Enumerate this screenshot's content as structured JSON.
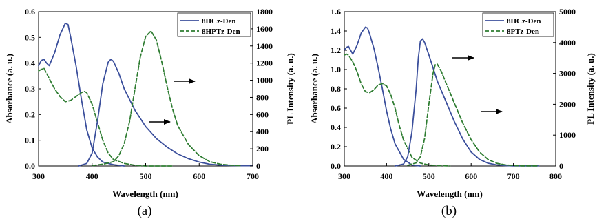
{
  "colors": {
    "solid": "#3b4f9c",
    "dashed": "#2f7d32",
    "axis": "#000000"
  },
  "chart_data": [
    {
      "type": "line",
      "caption": "(a)",
      "xlabel": "Wavelength (nm)",
      "ylabel": "Absorbance (a. u.)",
      "y2label": "PL Intensity (a. u.)",
      "xlim": [
        300,
        700
      ],
      "ylim": [
        0,
        0.6
      ],
      "y2lim": [
        0,
        1800
      ],
      "xticks": [
        300,
        400,
        500,
        600,
        700
      ],
      "yticks": [
        0.0,
        0.1,
        0.2,
        0.3,
        0.4,
        0.5,
        0.6
      ],
      "ytick_labels": [
        "0.0",
        "0.1",
        "0.2",
        "0.3",
        "0.4",
        "0.5",
        "0.6"
      ],
      "y2ticks": [
        0,
        200,
        400,
        600,
        800,
        1000,
        1200,
        1400,
        1600,
        1800
      ],
      "legend_position": "top-right",
      "series": [
        {
          "name": "8HCz-Den",
          "style": "solid",
          "axis": "left",
          "kind": "absorbance",
          "x": [
            300,
            305,
            310,
            315,
            320,
            330,
            340,
            350,
            355,
            360,
            370,
            380,
            390,
            400,
            410,
            420,
            440,
            460
          ],
          "y": [
            0.39,
            0.41,
            0.415,
            0.4,
            0.39,
            0.44,
            0.51,
            0.555,
            0.55,
            0.5,
            0.39,
            0.26,
            0.14,
            0.07,
            0.035,
            0.015,
            0.005,
            0.0
          ]
        },
        {
          "name": "8HPTz-Den",
          "style": "dashed",
          "axis": "left",
          "kind": "absorbance",
          "x": [
            300,
            305,
            310,
            320,
            330,
            340,
            350,
            360,
            370,
            380,
            385,
            390,
            400,
            410,
            420,
            430,
            440,
            460,
            480,
            500,
            550
          ],
          "y": [
            0.37,
            0.375,
            0.38,
            0.34,
            0.3,
            0.27,
            0.25,
            0.255,
            0.27,
            0.285,
            0.29,
            0.285,
            0.24,
            0.17,
            0.1,
            0.05,
            0.025,
            0.01,
            0.003,
            0.0,
            0.0
          ]
        },
        {
          "name": "8HCz-Den",
          "style": "solid",
          "axis": "right",
          "kind": "PL",
          "x": [
            375,
            390,
            400,
            410,
            420,
            430,
            435,
            440,
            450,
            460,
            480,
            500,
            520,
            540,
            560,
            580,
            600,
            620,
            640,
            660,
            680,
            700
          ],
          "y": [
            0,
            30,
            150,
            520,
            960,
            1210,
            1245,
            1220,
            1080,
            900,
            650,
            460,
            320,
            220,
            140,
            85,
            45,
            20,
            10,
            5,
            3,
            3
          ]
        },
        {
          "name": "8HPTz-Den",
          "style": "dashed",
          "axis": "right",
          "kind": "PL",
          "x": [
            400,
            420,
            440,
            450,
            460,
            470,
            480,
            490,
            500,
            510,
            520,
            530,
            540,
            550,
            560,
            580,
            600,
            620,
            640,
            660,
            680
          ],
          "y": [
            5,
            20,
            50,
            120,
            260,
            520,
            900,
            1270,
            1510,
            1575,
            1470,
            1220,
            930,
            670,
            470,
            250,
            120,
            50,
            20,
            8,
            3
          ]
        }
      ],
      "annotations": [
        {
          "type": "arrow",
          "direction": "right",
          "text": ""
        },
        {
          "type": "arrow",
          "direction": "right",
          "text": ""
        }
      ]
    },
    {
      "type": "line",
      "caption": "(b)",
      "xlabel": "Wavelength (nm)",
      "ylabel": "Absorbance (a. u.)",
      "y2label": "PL Intensity (a. u.)",
      "xlim": [
        300,
        800
      ],
      "ylim": [
        0,
        1.6
      ],
      "y2lim": [
        0,
        5000
      ],
      "xticks": [
        300,
        400,
        500,
        600,
        700,
        800
      ],
      "yticks": [
        0.0,
        0.2,
        0.4,
        0.6,
        0.8,
        1.0,
        1.2,
        1.4,
        1.6
      ],
      "ytick_labels": [
        "0.0",
        "0.2",
        "0.4",
        "0.6",
        "0.8",
        "1.0",
        "1.2",
        "1.4",
        "1.6"
      ],
      "y2ticks": [
        0,
        1000,
        2000,
        3000,
        4000,
        5000
      ],
      "legend_position": "top-right",
      "series": [
        {
          "name": "8HCz-Den",
          "style": "solid",
          "axis": "left",
          "kind": "absorbance",
          "x": [
            300,
            305,
            310,
            315,
            320,
            330,
            340,
            350,
            355,
            360,
            370,
            380,
            390,
            400,
            410,
            420,
            440,
            460,
            480
          ],
          "y": [
            1.2,
            1.23,
            1.24,
            1.2,
            1.16,
            1.25,
            1.38,
            1.44,
            1.43,
            1.37,
            1.22,
            1.02,
            0.8,
            0.57,
            0.38,
            0.23,
            0.07,
            0.01,
            0.0
          ]
        },
        {
          "name": "8PTz-Den",
          "style": "dashed",
          "axis": "left",
          "kind": "absorbance",
          "x": [
            300,
            305,
            310,
            320,
            330,
            340,
            350,
            360,
            370,
            380,
            390,
            400,
            410,
            420,
            430,
            440,
            460,
            480,
            500,
            520,
            550
          ],
          "y": [
            1.15,
            1.16,
            1.15,
            1.08,
            0.98,
            0.85,
            0.77,
            0.76,
            0.79,
            0.84,
            0.855,
            0.83,
            0.74,
            0.6,
            0.42,
            0.27,
            0.09,
            0.03,
            0.01,
            0.005,
            0.0
          ]
        },
        {
          "name": "8HCz-Den",
          "style": "solid",
          "axis": "right",
          "kind": "PL",
          "x": [
            420,
            440,
            450,
            460,
            470,
            475,
            480,
            485,
            490,
            500,
            520,
            540,
            560,
            580,
            600,
            620,
            640,
            660,
            680,
            700,
            720,
            740,
            760
          ],
          "y": [
            0,
            60,
            300,
            1100,
            2500,
            3500,
            4050,
            4120,
            4000,
            3600,
            2750,
            2100,
            1450,
            880,
            450,
            210,
            90,
            35,
            15,
            5,
            3,
            2,
            2
          ]
        },
        {
          "name": "8PTz-Den",
          "style": "dashed",
          "axis": "right",
          "kind": "PL",
          "x": [
            450,
            470,
            480,
            490,
            500,
            510,
            515,
            520,
            530,
            540,
            550,
            560,
            580,
            600,
            620,
            640,
            660,
            680,
            700,
            720,
            740,
            760
          ],
          "y": [
            20,
            100,
            300,
            900,
            2000,
            3000,
            3280,
            3300,
            3050,
            2700,
            2380,
            2050,
            1400,
            850,
            450,
            210,
            90,
            35,
            15,
            5,
            3,
            2
          ]
        }
      ],
      "annotations": [
        {
          "type": "arrow",
          "direction": "right",
          "text": ""
        },
        {
          "type": "arrow",
          "direction": "right",
          "text": ""
        }
      ]
    }
  ]
}
